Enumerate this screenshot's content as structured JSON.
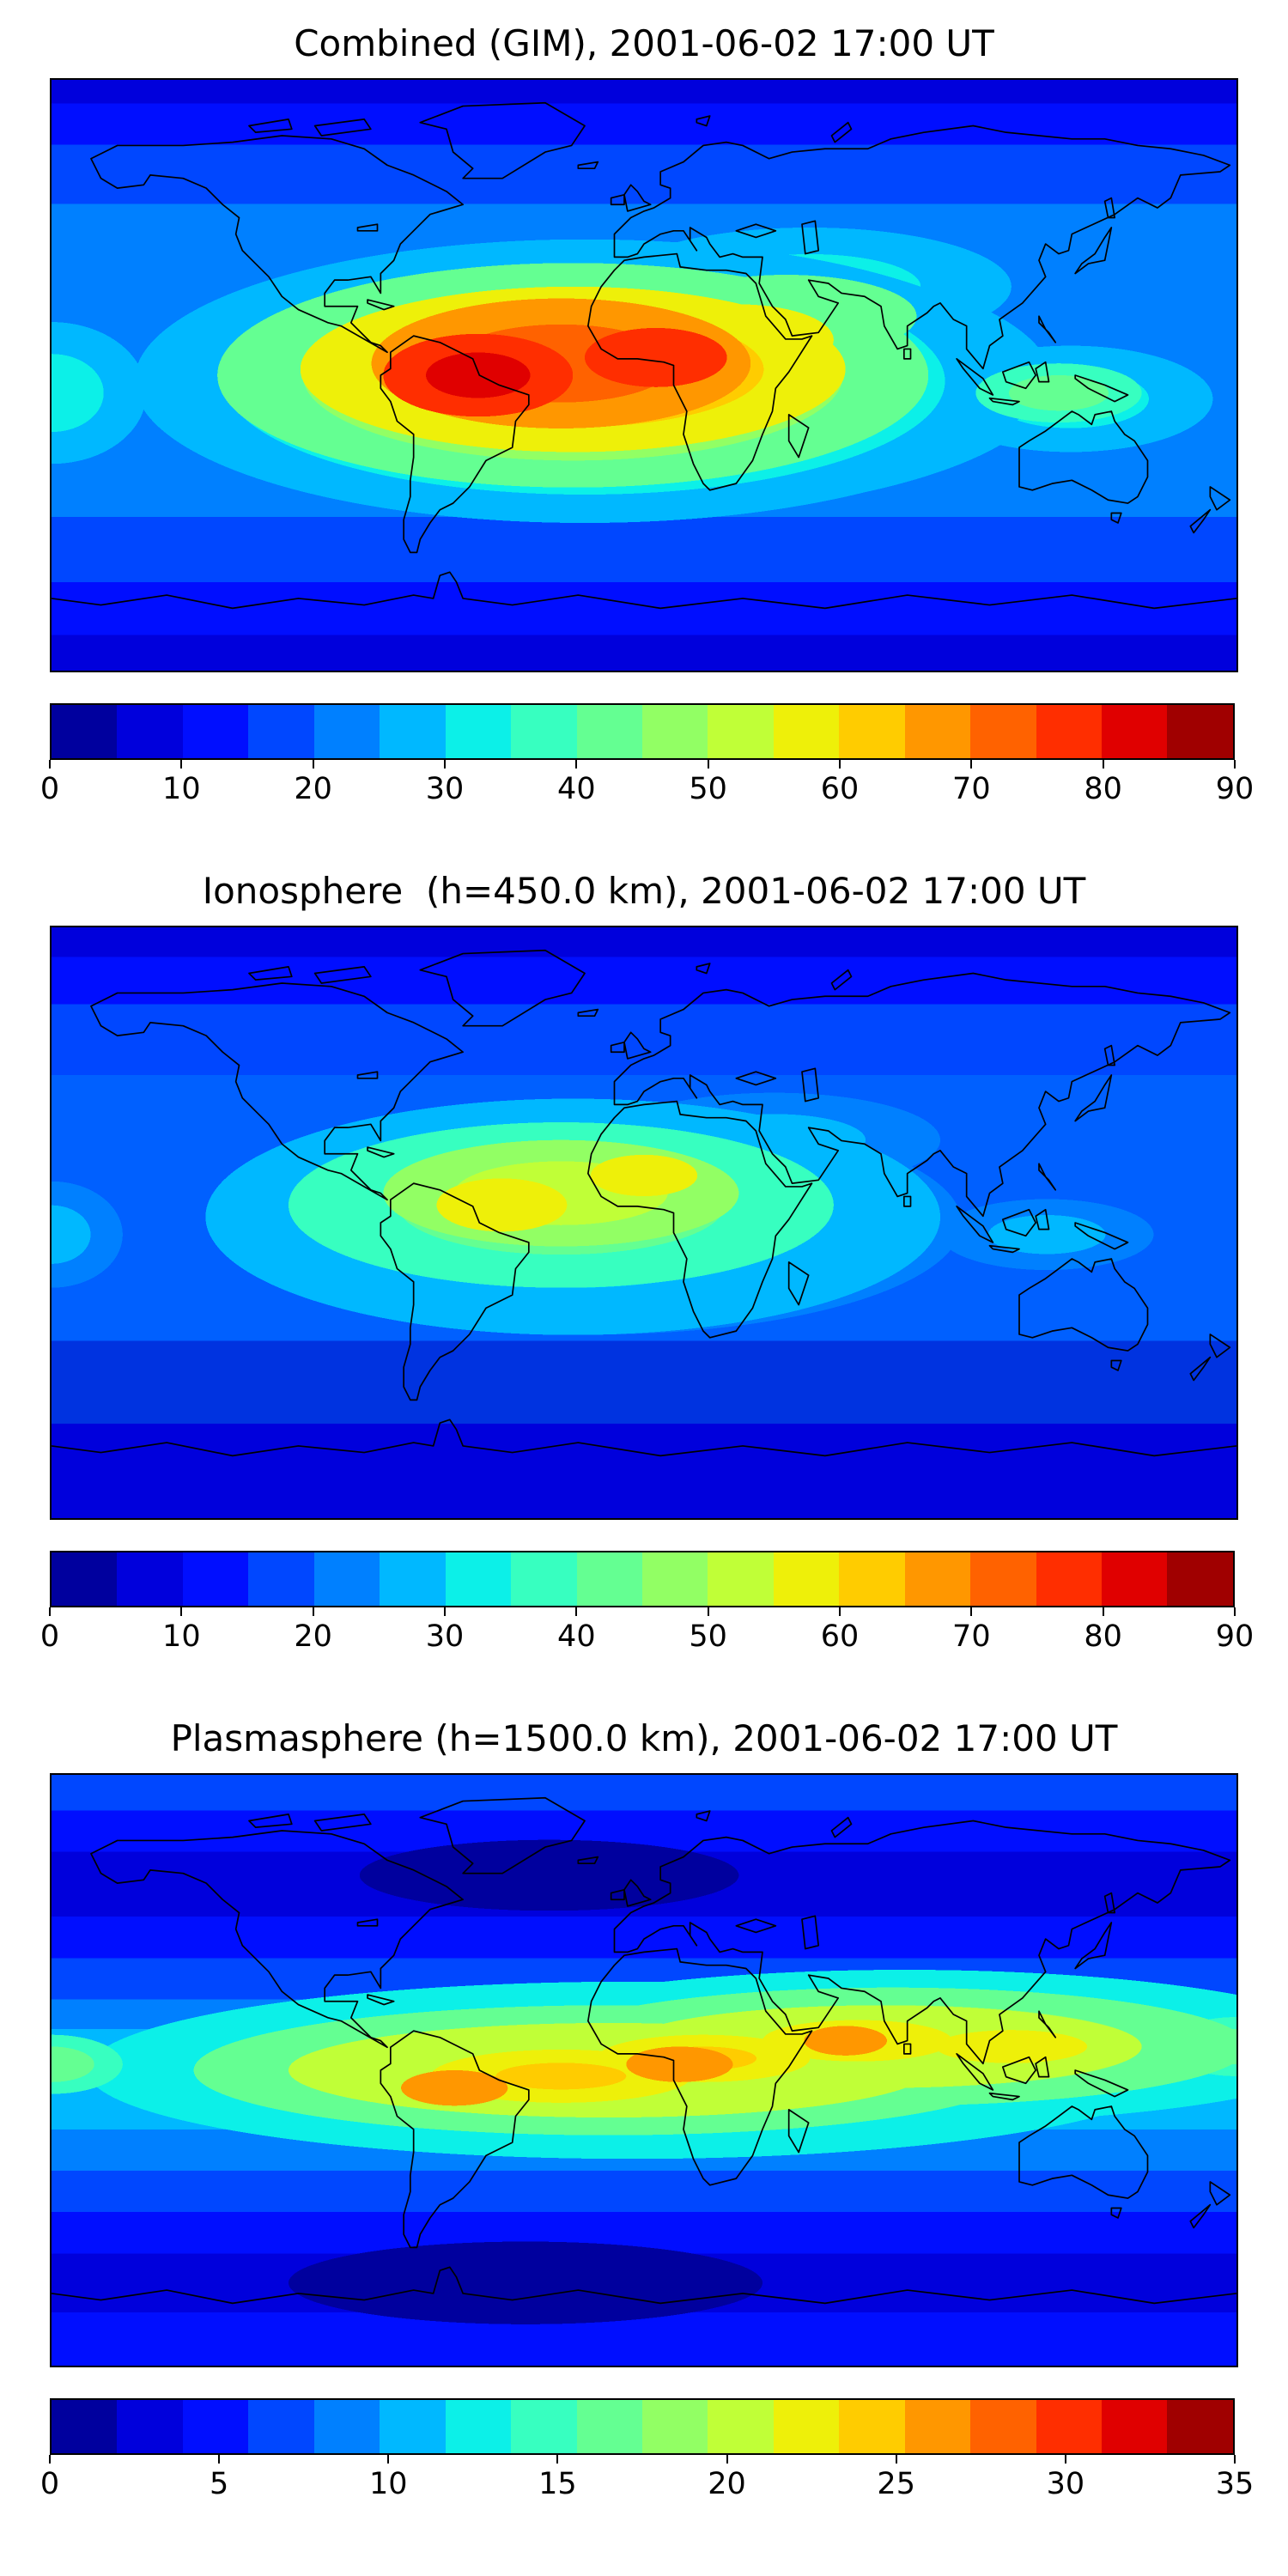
{
  "figure": {
    "background": "#ffffff",
    "coastline_color": "#000000",
    "text_color": "#000000"
  },
  "colorbar": {
    "colormap": "jet",
    "band_colors": [
      "#00009e",
      "#0000dc",
      "#000eff",
      "#0047ff",
      "#0080ff",
      "#00b8ff",
      "#0cf0e8",
      "#37ffc0",
      "#64ff92",
      "#92ff64",
      "#c0ff37",
      "#eef009",
      "#ffcc00",
      "#ff9700",
      "#ff6200",
      "#ff2e00",
      "#e00000",
      "#a00000"
    ]
  },
  "panels": [
    {
      "id": "combined",
      "title": "Combined (GIM), 2001-06-02 17:00 UT",
      "colorbar_ticks": [
        "0",
        "10",
        "20",
        "30",
        "40",
        "50",
        "60",
        "70",
        "80",
        "90"
      ]
    },
    {
      "id": "ionosphere",
      "title": "Ionosphere  (h=450.0 km), 2001-06-02 17:00 UT",
      "colorbar_ticks": [
        "0",
        "10",
        "20",
        "30",
        "40",
        "50",
        "60",
        "70",
        "80",
        "90"
      ]
    },
    {
      "id": "plasmasphere",
      "title": "Plasmasphere (h=1500.0 km), 2001-06-02 17:00 UT",
      "colorbar_ticks": [
        "0",
        "5",
        "10",
        "15",
        "20",
        "25",
        "30",
        "35"
      ]
    }
  ],
  "chart_data": [
    {
      "type": "heatmap",
      "variant": "filled_contour_world_map",
      "title": "Combined (GIM), 2001-06-02 17:00 UT",
      "projection": "equirectangular",
      "lon_range": [
        -180,
        180
      ],
      "lat_range": [
        -90,
        90
      ],
      "colormap": "jet",
      "value_range": [
        0,
        90
      ],
      "colorbar_ticks": [
        0,
        10,
        20,
        30,
        40,
        50,
        60,
        70,
        80,
        90
      ],
      "contour_interval_approx": 5,
      "legend_position": "bottom",
      "grid": false,
      "estimated_features": [
        {
          "name": "primary-equatorial-maximum",
          "lon_approx": -50,
          "lat_approx": -2,
          "value_approx": 85
        },
        {
          "name": "secondary-maximum-west-africa",
          "lon_approx": 0,
          "lat_approx": 3,
          "value_approx": 80
        },
        {
          "name": "midlatitude-enhancement-tongue",
          "lon_approx": 50,
          "lat_approx": 25,
          "value_approx": 35
        },
        {
          "name": "southeast-asia-enhancement",
          "lon_approx": 125,
          "lat_approx": -8,
          "value_approx": 40
        },
        {
          "name": "polar-minimum",
          "lat_approx": 85,
          "value_approx": 5
        }
      ]
    },
    {
      "type": "heatmap",
      "variant": "filled_contour_world_map",
      "title": "Ionosphere  (h=450.0 km), 2001-06-02 17:00 UT",
      "projection": "equirectangular",
      "lon_range": [
        -180,
        180
      ],
      "lat_range": [
        -90,
        90
      ],
      "colormap": "jet",
      "value_range": [
        0,
        90
      ],
      "colorbar_ticks": [
        0,
        10,
        20,
        30,
        40,
        50,
        60,
        70,
        80,
        90
      ],
      "contour_interval_approx": 5,
      "legend_position": "bottom",
      "grid": false,
      "estimated_features": [
        {
          "name": "primary-equatorial-maximum",
          "lon_approx": -45,
          "lat_approx": 0,
          "value_approx": 55
        },
        {
          "name": "secondary-maximum",
          "lon_approx": 0,
          "lat_approx": 8,
          "value_approx": 50
        },
        {
          "name": "southeast-asia-enhancement",
          "lon_approx": 120,
          "lat_approx": -5,
          "value_approx": 30
        },
        {
          "name": "polar-minimum",
          "lat_approx": 85,
          "value_approx": 5
        }
      ]
    },
    {
      "type": "heatmap",
      "variant": "filled_contour_world_map",
      "title": "Plasmasphere (h=1500.0 km), 2001-06-02 17:00 UT",
      "projection": "equirectangular",
      "lon_range": [
        -180,
        180
      ],
      "lat_range": [
        -90,
        90
      ],
      "colormap": "jet",
      "value_range": [
        0,
        35
      ],
      "colorbar_ticks": [
        0,
        5,
        10,
        15,
        20,
        25,
        30,
        35
      ],
      "contour_interval_approx": 2.5,
      "legend_position": "bottom",
      "grid": false,
      "estimated_features": [
        {
          "name": "equatorial-band-maximum-south-america",
          "lon_approx": -58,
          "lat_approx": -4,
          "value_approx": 27
        },
        {
          "name": "equatorial-band-maximum-africa",
          "lon_approx": 10,
          "lat_approx": 2,
          "value_approx": 27
        },
        {
          "name": "equatorial-band-maximum-asia",
          "lon_approx": 60,
          "lat_approx": 9,
          "value_approx": 27
        },
        {
          "name": "midlatitude-minimum-north",
          "lon_approx": -30,
          "lat_approx": 60,
          "value_approx": 3
        },
        {
          "name": "midlatitude-minimum-south",
          "lon_approx": -40,
          "lat_approx": -65,
          "value_approx": 3
        }
      ]
    }
  ]
}
